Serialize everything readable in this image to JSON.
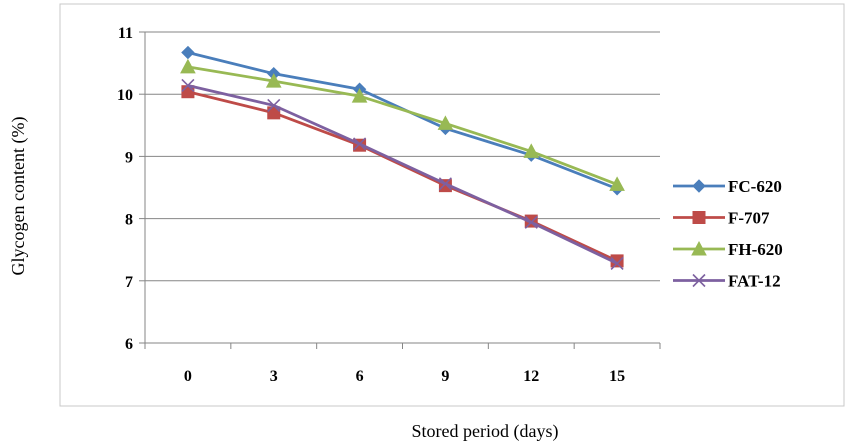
{
  "chart_data": {
    "type": "line",
    "title": "",
    "xlabel": "Stored period (days)",
    "ylabel": "Glycogen content (%)",
    "categories": [
      "0",
      "3",
      "6",
      "9",
      "12",
      "15"
    ],
    "ylim": [
      6,
      11
    ],
    "yticks": [
      "6",
      "7",
      "8",
      "9",
      "10",
      "11"
    ],
    "grid": "horizontal",
    "legend_position": "right",
    "series": [
      {
        "name": "FC-620",
        "values": [
          10.67,
          10.33,
          10.08,
          9.45,
          9.02,
          8.48
        ],
        "color": "#4a7ebb",
        "marker": "diamond"
      },
      {
        "name": "F-707",
        "values": [
          10.04,
          9.7,
          9.18,
          8.53,
          7.96,
          7.32
        ],
        "color": "#be4b48",
        "marker": "square"
      },
      {
        "name": "FH-620",
        "values": [
          10.44,
          10.21,
          9.97,
          9.53,
          9.08,
          8.55
        ],
        "color": "#98b954",
        "marker": "triangle"
      },
      {
        "name": "FAT-12",
        "values": [
          10.14,
          9.82,
          9.2,
          8.56,
          7.94,
          7.28
        ],
        "color": "#7d60a0",
        "marker": "x"
      }
    ]
  }
}
